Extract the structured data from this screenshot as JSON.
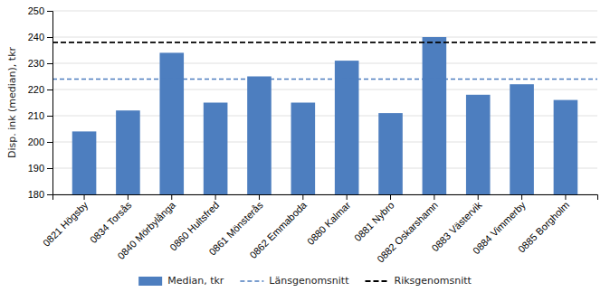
{
  "chart_data": {
    "type": "bar",
    "categories": [
      "0821 Högsby",
      "0834 Torsås",
      "0840 Mörbylånga",
      "0860 Hultsfred",
      "0861 Mönsterås",
      "0862 Emmaboda",
      "0880 Kalmar",
      "0881 Nybro",
      "0882 Oskarshamn",
      "0883 Västervik",
      "0884 Vimmerby",
      "0885 Borgholm"
    ],
    "series": [
      {
        "name": "Median, tkr",
        "color": "#4d7ebf",
        "values": [
          204,
          212,
          234,
          215,
          225,
          215,
          231,
          211,
          240,
          218,
          222,
          216
        ]
      }
    ],
    "reference_lines": [
      {
        "name": "Länsgenomsnitt",
        "value": 224,
        "color": "#4d7ebf",
        "line_style": "dashed"
      },
      {
        "name": "Riksgenomsnitt",
        "value": 238,
        "color": "#000000",
        "line_style": "dashed"
      }
    ],
    "ylabel": "Disp. ink (median), tkr",
    "ylim": [
      180,
      250
    ],
    "yticks": [
      180,
      190,
      200,
      210,
      220,
      230,
      240,
      250
    ],
    "grid": true,
    "legend": "bottom"
  }
}
